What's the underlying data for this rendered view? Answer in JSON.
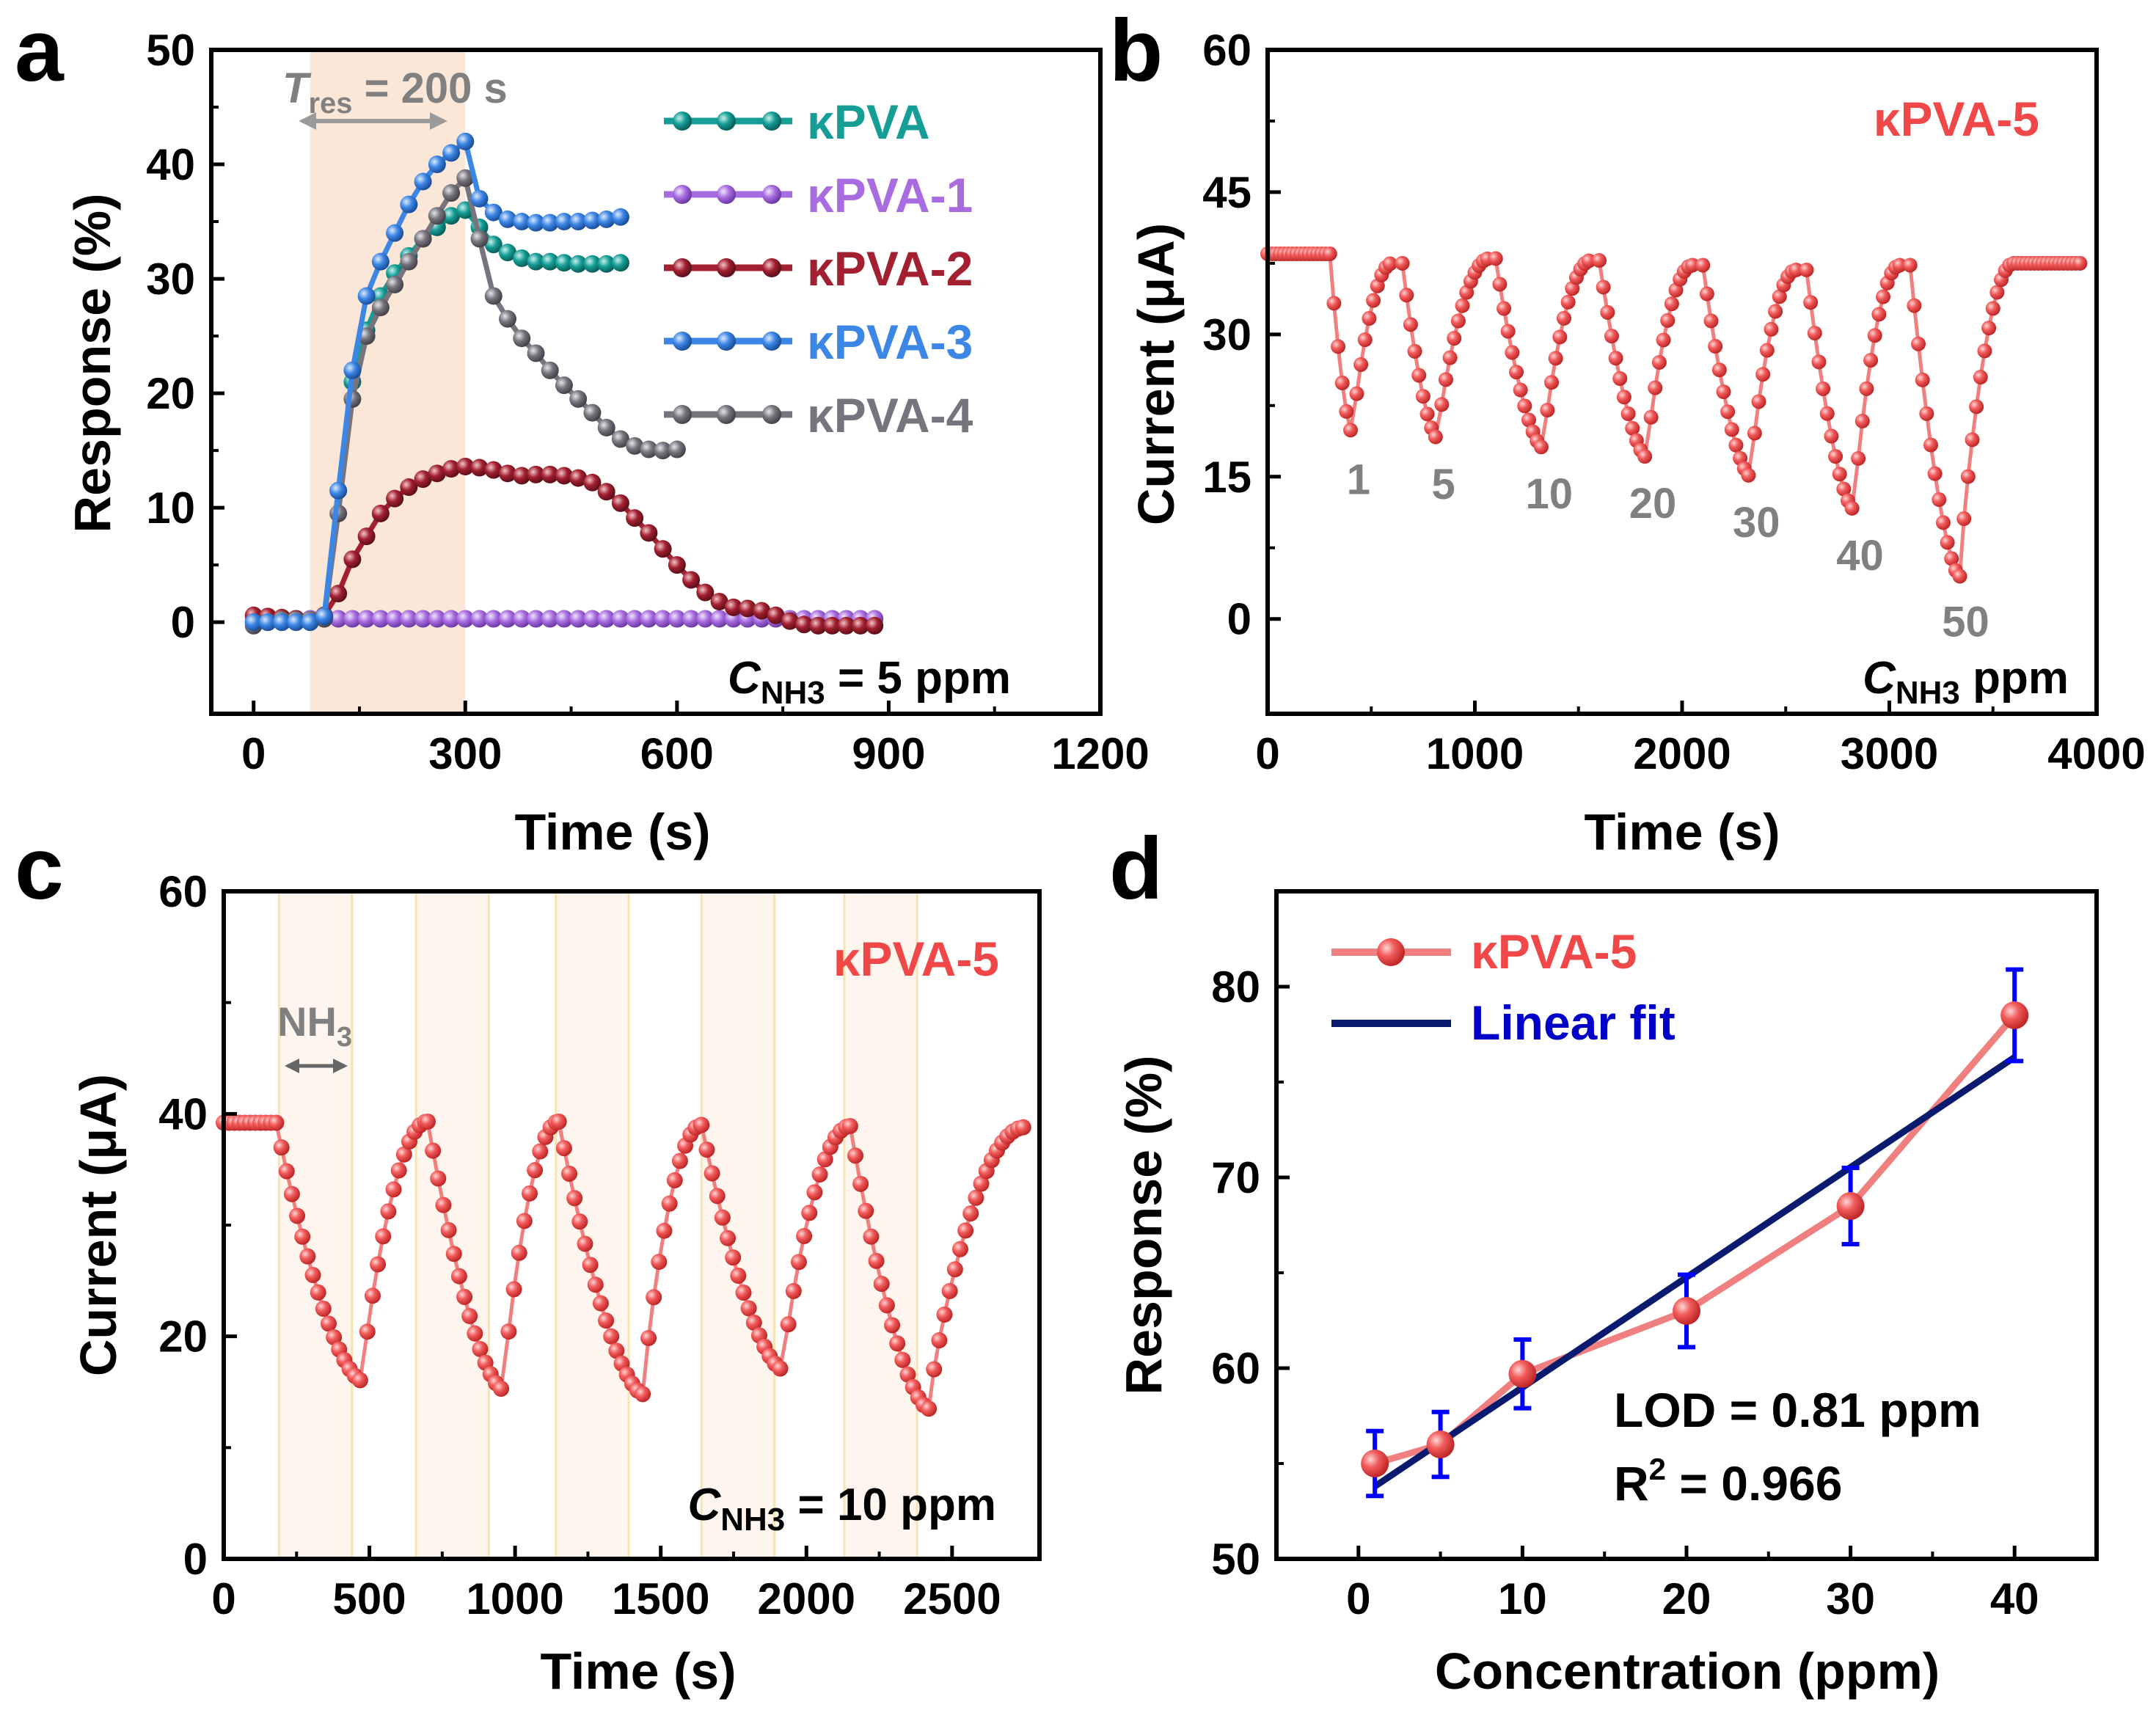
{
  "colors": {
    "kPVA": "#149E96",
    "kPVA-1": "#A86CE0",
    "kPVA-2": "#A32030",
    "kPVA-3": "#3C86E6",
    "kPVA-4": "#78747E",
    "kPVA-5": "#F04848",
    "kPVA-5-line": "#F08080",
    "fit": "#0A1A6E",
    "errbar": "#0000FF",
    "shade": "#FBE7D7",
    "annot_gray": "#808080"
  },
  "chart_data": [
    {
      "panel": "a",
      "type": "line",
      "xlabel": "Time (s)",
      "ylabel": "Response (%)",
      "xlim": [
        -60,
        1200
      ],
      "ylim": [
        -8,
        50
      ],
      "xticks": [
        "0",
        "300",
        "600",
        "900",
        "1200"
      ],
      "yticks": [
        "0",
        "10",
        "20",
        "30",
        "40",
        "50"
      ],
      "shaded_interval": [
        80,
        300
      ],
      "annotation_tres": {
        "prefix": "T",
        "sub": "res",
        "suffix": " = 200 s"
      },
      "annotation_conc": {
        "prefix": "C",
        "sub": "NH3",
        "suffix": " = 5 ppm"
      },
      "series": [
        {
          "name": "κPVA",
          "color_key": "kPVA",
          "x": [
            0,
            20,
            40,
            60,
            80,
            100,
            120,
            140,
            160,
            180,
            200,
            220,
            240,
            260,
            280,
            300,
            320,
            340,
            360,
            380,
            400,
            420,
            440,
            460,
            480,
            500,
            520
          ],
          "y": [
            0,
            0,
            0,
            0,
            0,
            0.5,
            11.5,
            21,
            25.5,
            28.5,
            30.5,
            32,
            33.5,
            34.5,
            35.5,
            36,
            34.5,
            33,
            32.3,
            31.8,
            31.5,
            31.5,
            31.4,
            31.3,
            31.3,
            31.3,
            31.4
          ]
        },
        {
          "name": "κPVA-1",
          "color_key": "kPVA-1",
          "x": [
            0,
            20,
            40,
            60,
            80,
            100,
            120,
            140,
            160,
            180,
            200,
            220,
            240,
            260,
            280,
            300,
            320,
            340,
            360,
            380,
            400,
            420,
            440,
            460,
            480,
            500,
            520,
            540,
            560,
            580,
            600,
            620,
            640,
            660,
            680,
            700,
            720,
            740,
            760,
            780,
            800,
            820,
            840,
            860,
            880
          ],
          "y": [
            0.3,
            0.3,
            0.3,
            0.3,
            0.3,
            0.3,
            0.3,
            0.3,
            0.3,
            0.3,
            0.3,
            0.3,
            0.3,
            0.3,
            0.3,
            0.3,
            0.3,
            0.3,
            0.3,
            0.3,
            0.3,
            0.3,
            0.3,
            0.3,
            0.3,
            0.3,
            0.3,
            0.3,
            0.3,
            0.3,
            0.3,
            0.3,
            0.3,
            0.3,
            0.3,
            0.3,
            0.3,
            0.3,
            0.3,
            0.3,
            0.3,
            0.3,
            0.3,
            0.3,
            0.3
          ]
        },
        {
          "name": "κPVA-2",
          "color_key": "kPVA-2",
          "x": [
            0,
            20,
            40,
            60,
            80,
            100,
            120,
            140,
            160,
            180,
            200,
            220,
            240,
            260,
            280,
            300,
            320,
            340,
            360,
            380,
            400,
            420,
            440,
            460,
            480,
            500,
            520,
            540,
            560,
            580,
            600,
            620,
            640,
            660,
            680,
            700,
            720,
            740,
            760,
            780,
            800,
            820,
            840,
            860,
            880
          ],
          "y": [
            0.6,
            0.5,
            0.4,
            0.3,
            0.2,
            0.6,
            2.5,
            5.5,
            7.5,
            9.5,
            10.8,
            11.8,
            12.5,
            13.0,
            13.4,
            13.6,
            13.5,
            13.3,
            13.0,
            12.8,
            12.9,
            12.9,
            12.8,
            12.6,
            12.2,
            11.4,
            10.4,
            9.1,
            7.8,
            6.4,
            5.0,
            3.7,
            2.6,
            1.8,
            1.3,
            1.2,
            1.0,
            0.6,
            0.1,
            -0.2,
            -0.3,
            -0.3,
            -0.3,
            -0.3,
            -0.3
          ]
        },
        {
          "name": "κPVA-3",
          "color_key": "kPVA-3",
          "x": [
            0,
            20,
            40,
            60,
            80,
            100,
            120,
            140,
            160,
            180,
            200,
            220,
            240,
            260,
            280,
            300,
            320,
            340,
            360,
            380,
            400,
            420,
            440,
            460,
            480,
            500,
            520
          ],
          "y": [
            0,
            0,
            0,
            0,
            0,
            0.5,
            11.5,
            22,
            28.5,
            31.5,
            34,
            36.5,
            38.5,
            40,
            41,
            42,
            37,
            35.8,
            35.2,
            35.0,
            34.9,
            34.9,
            35.0,
            35.0,
            35.1,
            35.2,
            35.4
          ]
        },
        {
          "name": "κPVA-4",
          "color_key": "kPVA-4",
          "x": [
            0,
            20,
            40,
            60,
            80,
            100,
            120,
            140,
            160,
            180,
            200,
            220,
            240,
            260,
            280,
            300,
            320,
            340,
            360,
            380,
            400,
            420,
            440,
            460,
            480,
            500,
            520,
            540,
            560,
            580,
            600
          ],
          "y": [
            -0.3,
            0,
            0.2,
            0.2,
            0.2,
            0.3,
            9.5,
            19.5,
            25,
            27.5,
            29.5,
            31.5,
            33.5,
            35.5,
            37.5,
            38.8,
            33.5,
            28.5,
            26.5,
            24.8,
            23.5,
            22.0,
            20.7,
            19.5,
            18.3,
            17.0,
            16.0,
            15.4,
            15.1,
            15.0,
            15.1
          ]
        }
      ]
    },
    {
      "panel": "b",
      "type": "line",
      "xlabel": "Time (s)",
      "ylabel": "Current (μA)",
      "xlim": [
        0,
        4000
      ],
      "ylim": [
        -10,
        60
      ],
      "xticks": [
        "0",
        "1000",
        "2000",
        "3000",
        "4000"
      ],
      "yticks": [
        "0",
        "15",
        "30",
        "45",
        "60"
      ],
      "series_name": "κPVA-5",
      "baseline": 38.5,
      "final_level": 37.5,
      "cycles": [
        {
          "start": 300,
          "min_time": 410,
          "min_value": 19.5,
          "end": 600,
          "recover_to": 37.5,
          "label": "1"
        },
        {
          "start": 650,
          "min_time": 820,
          "min_value": 19.0,
          "end": 1070,
          "recover_to": 38.0,
          "label": "5"
        },
        {
          "start": 1100,
          "min_time": 1330,
          "min_value": 18.0,
          "end": 1560,
          "recover_to": 37.8,
          "label": "10"
        },
        {
          "start": 1600,
          "min_time": 1830,
          "min_value": 17.0,
          "end": 2050,
          "recover_to": 37.3,
          "label": "20"
        },
        {
          "start": 2100,
          "min_time": 2330,
          "min_value": 15.0,
          "end": 2550,
          "recover_to": 36.8,
          "label": "30"
        },
        {
          "start": 2600,
          "min_time": 2830,
          "min_value": 11.5,
          "end": 3050,
          "recover_to": 37.3,
          "label": "40"
        },
        {
          "start": 3100,
          "min_time": 3340,
          "min_value": 4.5,
          "end": 3600,
          "recover_to": 37.5,
          "label": "50"
        }
      ],
      "annotation_conc": {
        "prefix": "C",
        "sub": "NH3",
        "suffix": " ppm"
      }
    },
    {
      "panel": "c",
      "type": "line",
      "xlabel": "Time (s)",
      "ylabel": "Current (μA)",
      "xlim": [
        0,
        2800
      ],
      "ylim": [
        0,
        60
      ],
      "xticks": [
        "0",
        "500",
        "1000",
        "1500",
        "2000",
        "2500"
      ],
      "yticks": [
        "0",
        "20",
        "40",
        "60"
      ],
      "series_name": "κPVA-5",
      "baseline": 39.2,
      "final_level": 38.8,
      "shaded_intervals": [
        [
          190,
          440
        ],
        [
          660,
          910
        ],
        [
          1140,
          1390
        ],
        [
          1640,
          1890
        ],
        [
          2130,
          2380
        ]
      ],
      "cycles": [
        {
          "start": 180,
          "min_time": 475,
          "min_value": 16.0,
          "end": 700,
          "recover_to": 39.3
        },
        {
          "start": 700,
          "min_time": 960,
          "min_value": 15.2,
          "end": 1150,
          "recover_to": 39.3
        },
        {
          "start": 1150,
          "min_time": 1440,
          "min_value": 14.8,
          "end": 1640,
          "recover_to": 39.0
        },
        {
          "start": 1640,
          "min_time": 1920,
          "min_value": 17.0,
          "end": 2150,
          "recover_to": 38.9
        },
        {
          "start": 2150,
          "min_time": 2420,
          "min_value": 13.5,
          "end": 2750,
          "recover_to": 38.8
        }
      ],
      "annotation_gas": {
        "prefix": "NH",
        "sub": "3"
      },
      "annotation_conc": {
        "prefix": "C",
        "sub": "NH3",
        "suffix": " = 10 ppm"
      }
    },
    {
      "panel": "d",
      "type": "scatter",
      "xlabel": "Concentration (ppm)",
      "ylabel": "Response (%)",
      "xlim": [
        -5,
        45
      ],
      "ylim": [
        50,
        85
      ],
      "xticks": [
        "0",
        "10",
        "20",
        "30",
        "40"
      ],
      "yticks": [
        "50",
        "60",
        "70",
        "80"
      ],
      "series": [
        {
          "name": "κPVA-5",
          "x": [
            1,
            5,
            10,
            20,
            30,
            40
          ],
          "y": [
            55,
            56,
            59.7,
            63,
            68.5,
            78.5
          ],
          "err": [
            1.7,
            1.7,
            1.8,
            1.9,
            2.0,
            2.4
          ]
        }
      ],
      "fit": {
        "name": "Linear fit",
        "x": [
          1,
          40
        ],
        "y": [
          53.8,
          76.3
        ]
      },
      "lod_text": "LOD = 0.81 ppm",
      "r2": {
        "prefix": "R",
        "sup": "2",
        "suffix": " = 0.966"
      }
    }
  ]
}
